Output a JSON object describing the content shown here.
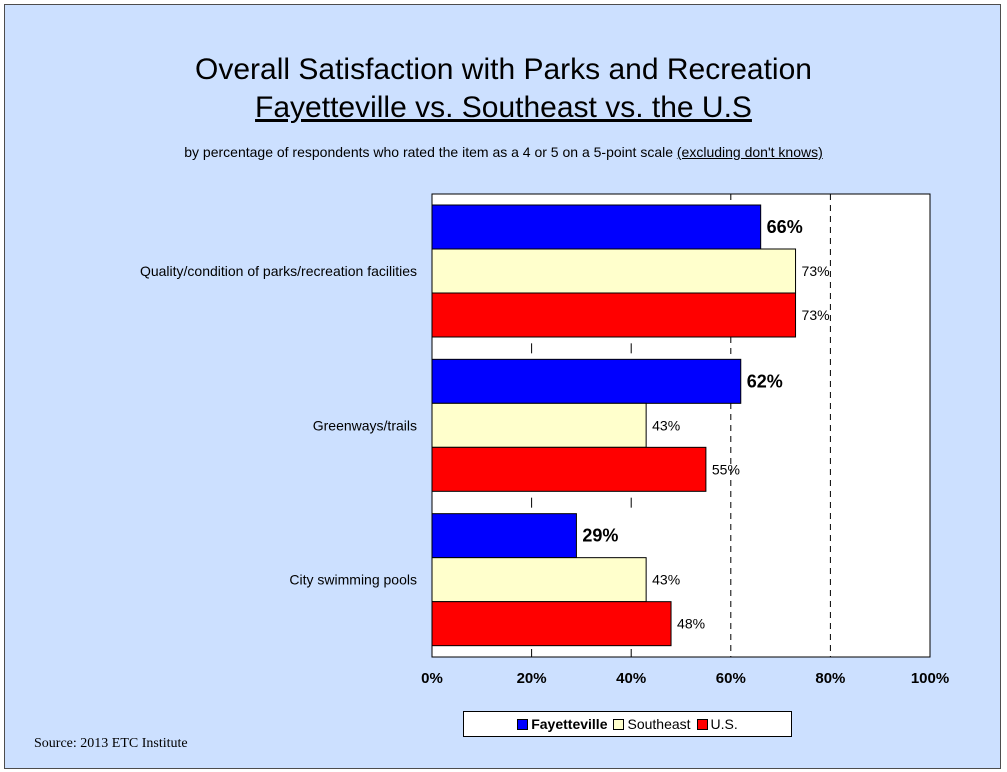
{
  "header": {
    "title_line1": "Overall Satisfaction with Parks and Recreation",
    "title_line2": "Fayetteville vs. Southeast vs. the U.S",
    "subtitle_main": "by percentage of respondents who rated the item as a 4 or 5 on a 5-point scale ",
    "subtitle_underlined": "(excluding don't knows)"
  },
  "source": "Source:  2013 ETC Institute",
  "colors": {
    "fayetteville": "#0000ff",
    "southeast": "#ffffcc",
    "us": "#ff0000",
    "background": "#cce0ff"
  },
  "chart_data": {
    "type": "bar",
    "orientation": "horizontal",
    "categories": [
      "Quality/condition of parks/recreation facilities",
      "Greenways/trails",
      "City swimming pools"
    ],
    "series": [
      {
        "name": "Fayetteville",
        "values": [
          66,
          62,
          29
        ],
        "labels": [
          "66%",
          "62%",
          "29%"
        ],
        "color": "#0000ff",
        "label_bold": true
      },
      {
        "name": "Southeast",
        "values": [
          73,
          43,
          43
        ],
        "labels": [
          "73%",
          "43%",
          "43%"
        ],
        "color": "#ffffcc",
        "label_bold": false
      },
      {
        "name": "U.S.",
        "values": [
          73,
          55,
          48
        ],
        "labels": [
          "73%",
          "55%",
          "48%"
        ],
        "color": "#ff0000",
        "label_bold": false
      }
    ],
    "xlim": [
      0,
      100
    ],
    "x_ticks": [
      "0%",
      "20%",
      "40%",
      "60%",
      "80%",
      "100%"
    ],
    "gridlines": "dashed at 60% and 80%",
    "legend_position": "bottom"
  }
}
